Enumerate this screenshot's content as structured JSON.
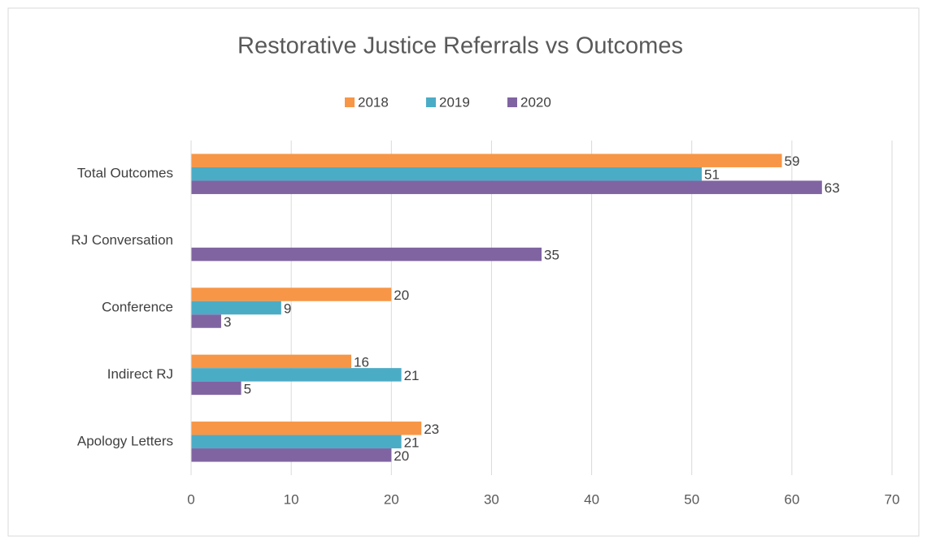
{
  "chart_data": {
    "type": "hbar",
    "title": "Restorative Justice Referrals vs Outcomes",
    "categories": [
      "Total Outcomes",
      "RJ Conversation",
      "Conference",
      "Indirect RJ",
      "Apology Letters"
    ],
    "series": [
      {
        "name": "2018",
        "color": "#f79646",
        "values": [
          59,
          null,
          20,
          16,
          23
        ]
      },
      {
        "name": "2019",
        "color": "#4bacc6",
        "values": [
          51,
          null,
          9,
          21,
          21
        ]
      },
      {
        "name": "2020",
        "color": "#8064a2",
        "values": [
          63,
          35,
          3,
          5,
          20
        ]
      }
    ],
    "xlim": [
      0,
      70
    ],
    "xticks": [
      0,
      10,
      20,
      30,
      40,
      50,
      60,
      70
    ],
    "grid": true,
    "legend": "top"
  }
}
